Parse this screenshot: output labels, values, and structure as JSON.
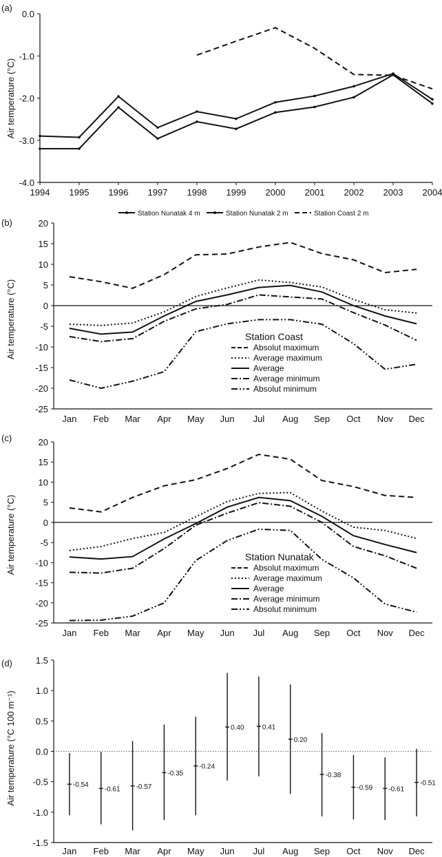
{
  "colors": {
    "ink": "#111111",
    "background": "#ffffff"
  },
  "chart_data": [
    {
      "panel": "(a)",
      "type": "line",
      "ylabel": "Air temperature (°C)",
      "xlabel": "",
      "xlim": [
        1994,
        2004
      ],
      "ylim": [
        -4.0,
        0.0
      ],
      "xticks": [
        "1994",
        "1995",
        "1996",
        "1997",
        "1998",
        "1999",
        "2000",
        "2001",
        "2002",
        "2003",
        "2004"
      ],
      "yticks": [
        "0.0",
        "-1.0",
        "-2.0",
        "-3.0",
        "-4.0"
      ],
      "legend_position": "bottom",
      "series": [
        {
          "name": "Station Nunatak 4 m",
          "style": "solid",
          "x": [
            1994,
            1995,
            1996,
            1997,
            1998,
            1999,
            2000,
            2001,
            2002,
            2003,
            2004
          ],
          "y": [
            -2.9,
            -2.93,
            -1.96,
            -2.7,
            -2.32,
            -2.49,
            -2.1,
            -1.95,
            -1.72,
            -1.42,
            -2.03
          ]
        },
        {
          "name": "Station Nunatak 2 m",
          "style": "solid",
          "x": [
            1994,
            1995,
            1996,
            1997,
            1998,
            1999,
            2000,
            2001,
            2002,
            2003,
            2004
          ],
          "y": [
            -3.2,
            -3.2,
            -2.22,
            -2.96,
            -2.56,
            -2.73,
            -2.34,
            -2.21,
            -1.98,
            -1.45,
            -2.13
          ]
        },
        {
          "name": "Station Coast 2 m",
          "style": "dashed",
          "x": [
            1998,
            1999,
            2000,
            2001,
            2002,
            2003,
            2004
          ],
          "y": [
            -0.98,
            -0.65,
            -0.33,
            -0.82,
            -1.44,
            -1.46,
            -1.78
          ]
        }
      ]
    },
    {
      "panel": "(b)",
      "type": "line",
      "ylabel": "Air temperature (°C)",
      "xlabel": "",
      "ylim": [
        -25,
        20
      ],
      "categories": [
        "Jan",
        "Feb",
        "Mar",
        "Apr",
        "May",
        "Jun",
        "Jul",
        "Aug",
        "Sep",
        "Oct",
        "Nov",
        "Dec"
      ],
      "yticks": [
        "20",
        "15",
        "10",
        "5",
        "0",
        "-5",
        "-10",
        "-15",
        "-20",
        "-25"
      ],
      "legend_title": "Station Coast",
      "legend_position": "center-right",
      "series": [
        {
          "name": "Absolut maximum",
          "style": "dashed",
          "values": [
            7,
            5.8,
            4.2,
            7.5,
            12.3,
            12.5,
            14.2,
            15.3,
            12.6,
            11.1,
            8,
            8.8
          ]
        },
        {
          "name": "Average maximum",
          "style": "dotted",
          "values": [
            -4.5,
            -4.8,
            -4.2,
            -1.5,
            2.2,
            4.3,
            6.2,
            5.6,
            4.5,
            1.5,
            -1,
            -1.8
          ]
        },
        {
          "name": "Average",
          "style": "solid",
          "values": [
            -5.5,
            -6.9,
            -6.4,
            -2.5,
            1,
            2.6,
            4.4,
            4.9,
            3.3,
            0,
            -2.5,
            -4.4
          ]
        },
        {
          "name": "Average minimum",
          "style": "dashdot",
          "values": [
            -7.5,
            -8.7,
            -8,
            -3.8,
            -0.8,
            0.3,
            2.6,
            2.1,
            1.6,
            -1.7,
            -4.7,
            -8.4
          ]
        },
        {
          "name": "Absolut minimum",
          "style": "dashdotdot",
          "values": [
            -18,
            -20,
            -18.3,
            -16,
            -6.3,
            -4.4,
            -3.4,
            -3.4,
            -4.5,
            -9.2,
            -15.4,
            -14.2
          ]
        }
      ]
    },
    {
      "panel": "(c)",
      "type": "line",
      "ylabel": "Air temperature (°C)",
      "xlabel": "",
      "ylim": [
        -25,
        20
      ],
      "categories": [
        "Jan",
        "Feb",
        "Mar",
        "Apr",
        "May",
        "Jun",
        "Jul",
        "Aug",
        "Sep",
        "Oct",
        "Nov",
        "Dec"
      ],
      "yticks": [
        "20",
        "15",
        "10",
        "5",
        "0",
        "-5",
        "-10",
        "-15",
        "-20",
        "-25"
      ],
      "legend_title": "Station Nunatak",
      "legend_position": "center-right",
      "series": [
        {
          "name": "Absolut maximum",
          "style": "dashed",
          "values": [
            3.6,
            2.6,
            6.2,
            9.1,
            10.6,
            13.4,
            16.9,
            15.7,
            10.4,
            8.9,
            6.7,
            6.2
          ]
        },
        {
          "name": "Average maximum",
          "style": "dotted",
          "values": [
            -7,
            -6,
            -4,
            -2.5,
            1.4,
            5.2,
            7.2,
            7.4,
            2.8,
            -1.2,
            -2,
            -4
          ]
        },
        {
          "name": "Average",
          "style": "solid",
          "values": [
            -8.6,
            -9.1,
            -8.5,
            -4.1,
            -0.3,
            3.8,
            6.2,
            5.4,
            1.5,
            -3.3,
            -5.5,
            -7.5
          ]
        },
        {
          "name": "Average minimum",
          "style": "dashdot",
          "values": [
            -12.4,
            -12.6,
            -11.4,
            -6.5,
            -0.7,
            2.3,
            4.9,
            4,
            0,
            -6,
            -8.3,
            -11.4
          ]
        },
        {
          "name": "Absolut minimum",
          "style": "dashdotdot",
          "values": [
            -24.4,
            -24.3,
            -23.3,
            -20,
            -9.5,
            -4.5,
            -1.7,
            -2,
            -9.2,
            -13.8,
            -20.3,
            -22.3
          ]
        }
      ]
    },
    {
      "panel": "(d)",
      "type": "errorbar",
      "ylabel": "Air temperature (°C 100 m⁻¹)",
      "xlabel": "",
      "ylim": [
        -1.5,
        1.5
      ],
      "categories": [
        "Jan",
        "Feb",
        "Mar",
        "Apr",
        "May",
        "Jun",
        "Jul",
        "Aug",
        "Sep",
        "Oct",
        "Nov",
        "Dec"
      ],
      "yticks": [
        "1.5",
        "1.0",
        "0.5",
        "0.0",
        "-0.5",
        "-1.0",
        "-1.5"
      ],
      "values": [
        -0.54,
        -0.61,
        -0.57,
        -0.35,
        -0.24,
        0.4,
        0.41,
        0.2,
        -0.38,
        -0.59,
        -0.61,
        -0.51
      ],
      "labels": [
        "-0.54",
        "-0.61",
        "-0.57",
        "-0.35",
        "-0.24",
        "0.40",
        "0.41",
        "0.20",
        "-0.38",
        "-0.59",
        "-0.61",
        "-0.51"
      ],
      "min": [
        -1.05,
        -1.2,
        -1.3,
        -1.13,
        -1.05,
        -0.48,
        -0.41,
        -0.7,
        -1.07,
        -1.12,
        -1.13,
        -1.07
      ],
      "max": [
        -0.03,
        -0.01,
        0.17,
        0.44,
        0.57,
        1.29,
        1.23,
        1.1,
        0.3,
        -0.06,
        -0.1,
        0.04
      ]
    }
  ]
}
